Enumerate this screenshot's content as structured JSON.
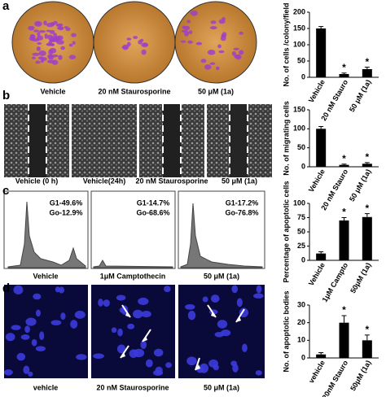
{
  "panels": [
    {
      "label": "a",
      "captions": [
        "Vehicle",
        "20 nM Staurosporine",
        "50 μM (1a)"
      ]
    },
    {
      "label": "b",
      "captions": [
        "Vehicle (0 h)",
        "Vehicle(24h)",
        "20 nM Staurosporine",
        "50 μM (1a)"
      ]
    },
    {
      "label": "c",
      "captions": [
        "Vehicle",
        "1μM  Camptothecin",
        "50 μM (1a)"
      ],
      "annotations": [
        [
          "G1-49.6%",
          "Go-12.9%"
        ],
        [
          "G1-14.7%",
          "Go-68.6%"
        ],
        [
          "G1-17.2%",
          "Go-76.8%"
        ]
      ]
    },
    {
      "label": "d",
      "captions": [
        "vehicle",
        "20 nM Staurosporine",
        "50 μM (1a)"
      ]
    }
  ],
  "chart_data": [
    {
      "type": "bar",
      "y_label": "No. of cells /colony/field",
      "categories": [
        "Vehicle",
        "20 nM Stauro",
        "50 μM (1a)"
      ],
      "values": [
        150,
        10,
        25
      ],
      "errors": [
        6,
        3,
        6
      ],
      "markers": [
        null,
        "*",
        "*"
      ],
      "color": "#000000",
      "ylim": [
        0,
        200
      ],
      "yticks": [
        0,
        50,
        100,
        150,
        200
      ]
    },
    {
      "type": "bar",
      "y_label": "No. of migrating cells",
      "categories": [
        "Vehicle",
        "20 nM Stauro",
        "50 μM (1a)"
      ],
      "values": [
        100,
        5,
        8
      ],
      "errors": [
        6,
        2,
        3
      ],
      "markers": [
        null,
        "*",
        "*"
      ],
      "color": "#000000",
      "ylim": [
        0,
        150
      ],
      "yticks": [
        0,
        50,
        100,
        150
      ]
    },
    {
      "type": "bar",
      "y_label": "Percentage of apoptotic cells",
      "categories": [
        "Vehicle",
        "1μM Campto",
        "50μM (1a)"
      ],
      "values": [
        12,
        70,
        76
      ],
      "errors": [
        3,
        5,
        6
      ],
      "markers": [
        null,
        "*",
        "*"
      ],
      "color": "#000000",
      "ylim": [
        0,
        100
      ],
      "yticks": [
        0,
        25,
        50,
        75,
        100
      ]
    },
    {
      "type": "bar",
      "y_label": "No. of apoptotic bodies",
      "categories": [
        "vehicle",
        "20nM  Stauro",
        "50μM (1a)"
      ],
      "values": [
        2,
        20,
        10
      ],
      "errors": [
        1,
        4,
        3
      ],
      "markers": [
        null,
        "*",
        "*"
      ],
      "color": "#000000",
      "ylim": [
        0,
        30
      ],
      "yticks": [
        0,
        10,
        20,
        30
      ]
    }
  ]
}
